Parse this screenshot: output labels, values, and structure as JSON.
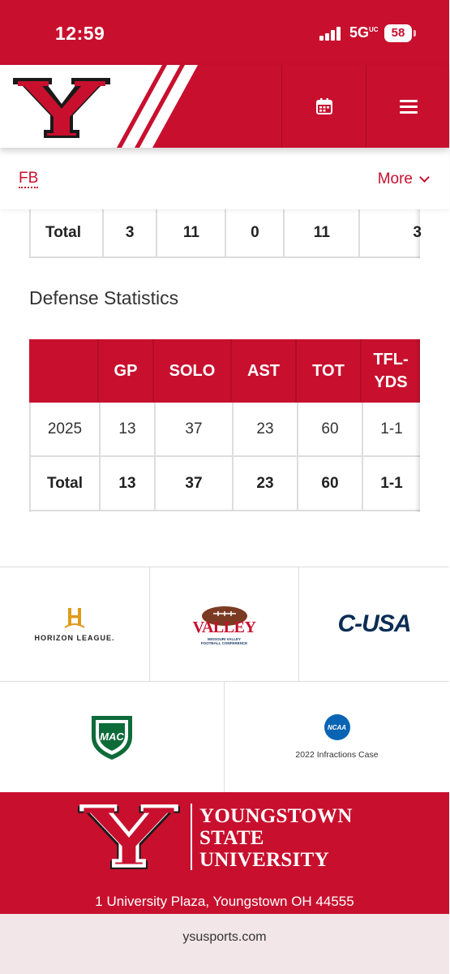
{
  "status": {
    "time": "12:59",
    "network": "5G",
    "network_suffix": "UC",
    "battery": "58"
  },
  "header": {
    "logo_letter": "Y",
    "calendar_icon": "calendar-icon",
    "menu_icon": "hamburger-icon"
  },
  "subnav": {
    "sport": "FB",
    "more_label": "More"
  },
  "previous_table": {
    "total_row": [
      "Total",
      "3",
      "11",
      "0",
      "11",
      "3"
    ]
  },
  "defense": {
    "title": "Defense Statistics",
    "headers": [
      "",
      "GP",
      "SOLO",
      "AST",
      "TOT",
      "TFL-\nYDS"
    ],
    "rows": [
      [
        "2025",
        "13",
        "37",
        "23",
        "60",
        "1-1"
      ],
      [
        "Total",
        "13",
        "37",
        "23",
        "60",
        "1-1"
      ]
    ]
  },
  "sponsors": {
    "horizon": "HORIZON LEAGUE.",
    "valley_word": "VALLEY",
    "valley_sub": "MISSOURI VALLEY FOOTBALL CONFERENCE",
    "cusa": "C-USA",
    "mac": "MAC",
    "ncaa_badge": "NCAA",
    "ncaa_caption": "2022 Infractions Case"
  },
  "footer": {
    "line1": "YOUNGSTOWN",
    "line2": "STATE",
    "line3": "UNIVERSITY",
    "address": "1 University Plaza, Youngstown OH 44555"
  },
  "browser": {
    "url": "ysusports.com"
  },
  "colors": {
    "brand_red": "#c8102e",
    "white": "#ffffff",
    "border_gray": "#dddddd"
  }
}
